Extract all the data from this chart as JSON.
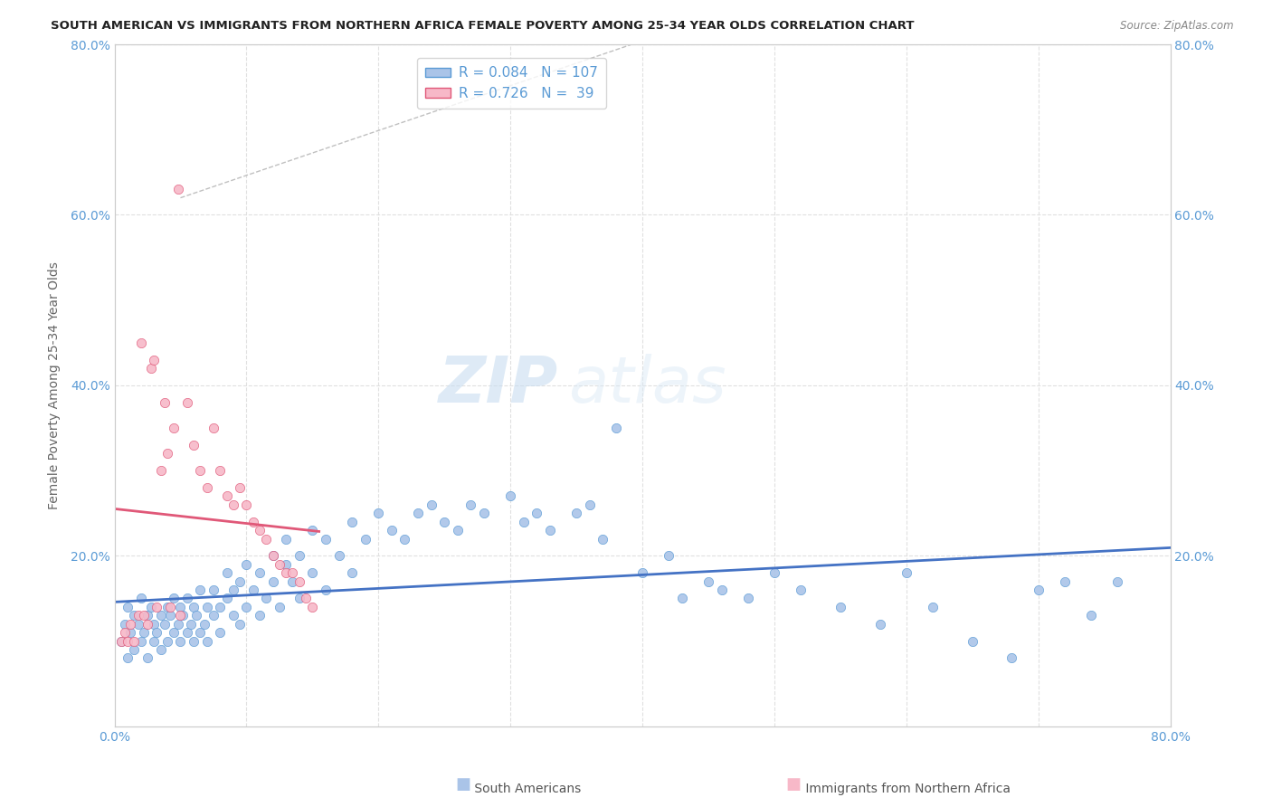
{
  "title": "SOUTH AMERICAN VS IMMIGRANTS FROM NORTHERN AFRICA FEMALE POVERTY AMONG 25-34 YEAR OLDS CORRELATION CHART",
  "source": "Source: ZipAtlas.com",
  "ylabel": "Female Poverty Among 25-34 Year Olds",
  "xlim": [
    0.0,
    0.8
  ],
  "ylim": [
    0.0,
    0.8
  ],
  "background_color": "#ffffff",
  "grid_color": "#e0e0e0",
  "watermark_zip": "ZIP",
  "watermark_atlas": "atlas",
  "series": [
    {
      "name": "South Americans",
      "R": 0.084,
      "N": 107,
      "color": "#aac4e8",
      "edge_color": "#5b9bd5",
      "line_color": "#4472c4"
    },
    {
      "name": "Immigrants from Northern Africa",
      "R": 0.726,
      "N": 39,
      "color": "#f7b8c8",
      "edge_color": "#e05878",
      "line_color": "#e05878"
    }
  ],
  "title_color": "#222222",
  "source_color": "#888888",
  "tick_color": "#5b9bd5",
  "axis_label_color": "#666666",
  "sa_x": [
    0.005,
    0.008,
    0.01,
    0.01,
    0.012,
    0.015,
    0.015,
    0.018,
    0.02,
    0.02,
    0.022,
    0.025,
    0.025,
    0.028,
    0.03,
    0.03,
    0.032,
    0.035,
    0.035,
    0.038,
    0.04,
    0.04,
    0.042,
    0.045,
    0.045,
    0.048,
    0.05,
    0.05,
    0.052,
    0.055,
    0.055,
    0.058,
    0.06,
    0.06,
    0.062,
    0.065,
    0.065,
    0.068,
    0.07,
    0.07,
    0.075,
    0.075,
    0.08,
    0.08,
    0.085,
    0.085,
    0.09,
    0.09,
    0.095,
    0.095,
    0.1,
    0.1,
    0.105,
    0.11,
    0.11,
    0.115,
    0.12,
    0.12,
    0.125,
    0.13,
    0.13,
    0.135,
    0.14,
    0.14,
    0.15,
    0.15,
    0.16,
    0.16,
    0.17,
    0.18,
    0.18,
    0.19,
    0.2,
    0.21,
    0.22,
    0.23,
    0.24,
    0.25,
    0.26,
    0.27,
    0.28,
    0.3,
    0.31,
    0.32,
    0.33,
    0.35,
    0.36,
    0.37,
    0.38,
    0.4,
    0.42,
    0.43,
    0.45,
    0.46,
    0.48,
    0.5,
    0.52,
    0.55,
    0.58,
    0.6,
    0.62,
    0.65,
    0.68,
    0.7,
    0.72,
    0.74,
    0.76
  ],
  "sa_y": [
    0.1,
    0.12,
    0.08,
    0.14,
    0.11,
    0.13,
    0.09,
    0.12,
    0.1,
    0.15,
    0.11,
    0.13,
    0.08,
    0.14,
    0.1,
    0.12,
    0.11,
    0.13,
    0.09,
    0.12,
    0.14,
    0.1,
    0.13,
    0.11,
    0.15,
    0.12,
    0.14,
    0.1,
    0.13,
    0.11,
    0.15,
    0.12,
    0.14,
    0.1,
    0.13,
    0.11,
    0.16,
    0.12,
    0.14,
    0.1,
    0.13,
    0.16,
    0.14,
    0.11,
    0.15,
    0.18,
    0.13,
    0.16,
    0.12,
    0.17,
    0.14,
    0.19,
    0.16,
    0.13,
    0.18,
    0.15,
    0.2,
    0.17,
    0.14,
    0.19,
    0.22,
    0.17,
    0.15,
    0.2,
    0.23,
    0.18,
    0.22,
    0.16,
    0.2,
    0.24,
    0.18,
    0.22,
    0.25,
    0.23,
    0.22,
    0.25,
    0.26,
    0.24,
    0.23,
    0.26,
    0.25,
    0.27,
    0.24,
    0.25,
    0.23,
    0.25,
    0.26,
    0.22,
    0.35,
    0.18,
    0.2,
    0.15,
    0.17,
    0.16,
    0.15,
    0.18,
    0.16,
    0.14,
    0.12,
    0.18,
    0.14,
    0.1,
    0.08,
    0.16,
    0.17,
    0.13,
    0.17
  ],
  "na_x": [
    0.005,
    0.008,
    0.01,
    0.012,
    0.015,
    0.018,
    0.02,
    0.022,
    0.025,
    0.028,
    0.03,
    0.032,
    0.035,
    0.038,
    0.04,
    0.042,
    0.045,
    0.048,
    0.05,
    0.055,
    0.06,
    0.065,
    0.07,
    0.075,
    0.08,
    0.085,
    0.09,
    0.095,
    0.1,
    0.105,
    0.11,
    0.115,
    0.12,
    0.125,
    0.13,
    0.135,
    0.14,
    0.145,
    0.15
  ],
  "na_y": [
    0.1,
    0.11,
    0.1,
    0.12,
    0.1,
    0.13,
    0.45,
    0.13,
    0.12,
    0.42,
    0.43,
    0.14,
    0.3,
    0.38,
    0.32,
    0.14,
    0.35,
    0.63,
    0.13,
    0.38,
    0.33,
    0.3,
    0.28,
    0.35,
    0.3,
    0.27,
    0.26,
    0.28,
    0.26,
    0.24,
    0.23,
    0.22,
    0.2,
    0.19,
    0.18,
    0.18,
    0.17,
    0.15,
    0.14
  ],
  "ref_line_x": [
    0.08,
    0.42
  ],
  "ref_line_y": [
    0.72,
    0.8
  ]
}
